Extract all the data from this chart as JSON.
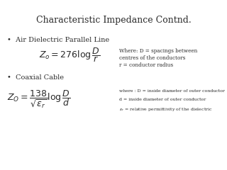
{
  "title": "Characteristic Impedance Contnd.",
  "bullet1": "•  Air Dielectric Parallel Line",
  "formula1": "$Z_o = 276\\log\\dfrac{D}{r}$",
  "where1_line1": "Where: D = spacings between",
  "where1_line2": "centres of the conductors",
  "where1_line3": "r = conductor radius",
  "bullet2": "•  Coaxial Cable",
  "formula2": "$Z_O=\\dfrac{138}{\\sqrt{\\varepsilon_r}}\\log\\dfrac{D}{d}$",
  "where2_line1": "where : D = inside diameter of outer conductor",
  "where2_line2": "d = inside diameter of outer conductor",
  "where2_line3": "$\\varepsilon_r$ = relative permittivity of the dielectric",
  "bg_color": "#ffffff",
  "text_color": "#2a2a2a"
}
